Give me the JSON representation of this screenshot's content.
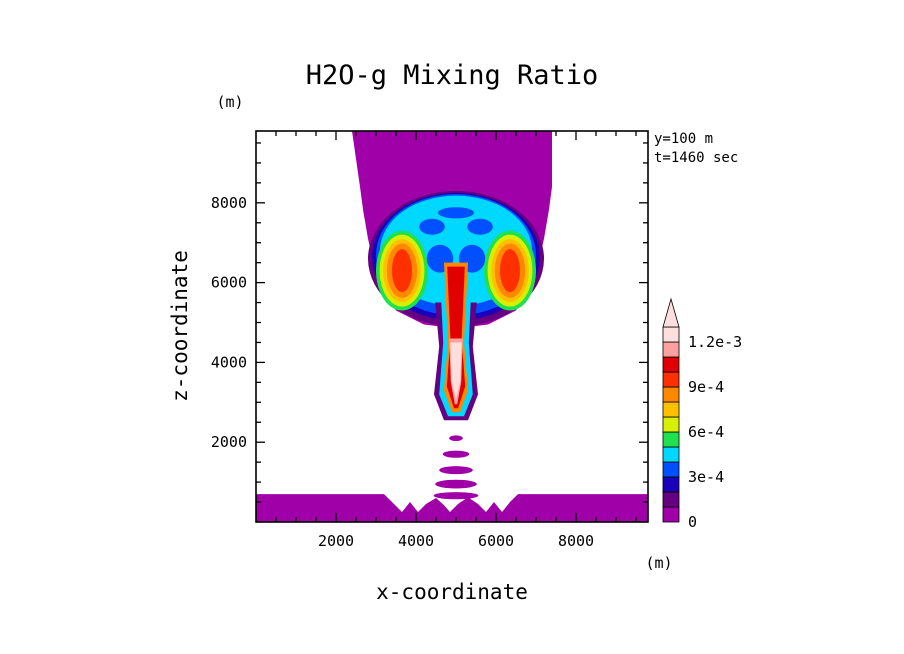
{
  "chart_data": {
    "type": "heatmap",
    "title": "H2O-g Mixing Ratio",
    "xlabel": "x-coordinate",
    "ylabel": "z-coordinate",
    "x_unit": "(m)",
    "y_unit": "(m)",
    "xlim": [
      0,
      9800
    ],
    "ylim": [
      0,
      9800
    ],
    "x_ticks": [
      "2000",
      "4000",
      "6000",
      "8000"
    ],
    "x_tick_values": [
      2000,
      4000,
      6000,
      8000
    ],
    "y_ticks": [
      "2000",
      "4000",
      "6000",
      "8000"
    ],
    "y_tick_values": [
      2000,
      4000,
      6000,
      8000
    ],
    "info_lines": [
      "y=100 m",
      "t=1460 sec"
    ],
    "colorbar": {
      "levels": [
        0,
        0.0001,
        0.0002,
        0.0003,
        0.0004,
        0.0005,
        0.0006,
        0.0007,
        0.0008,
        0.0009,
        0.001,
        0.0011,
        0.0012,
        0.0013
      ],
      "labels": [
        "0",
        "3e-4",
        "6e-4",
        "9e-4",
        "1.2e-3"
      ],
      "label_values": [
        0,
        0.0003,
        0.0006,
        0.0009,
        0.0012
      ],
      "colors": [
        "#a000a8",
        "#660080",
        "#1a00b8",
        "#0050ff",
        "#00d8ff",
        "#20e050",
        "#d8f000",
        "#ffc000",
        "#ff8800",
        "#ff3000",
        "#e00000",
        "#ffa0a0",
        "#ffdede"
      ],
      "extend": "max"
    },
    "features": [
      {
        "name": "upper moist layer",
        "value_class": 0,
        "region": "x 2400-7400 m, z 5500-9800 m"
      },
      {
        "name": "surface moist layer",
        "value_class": 0,
        "region": "x 0-9800 m, z 0-700 m"
      },
      {
        "name": "cloud head rim",
        "value_class": 2,
        "region": "x 2800-7200 m, z 5000-8300 m"
      },
      {
        "name": "cloud head",
        "value_class": 4,
        "region": "x 3000-7000 m, z 5200-8100 m"
      },
      {
        "name": "cloud head lobes",
        "value_class": 8,
        "region": "x 3000-4200 m and 5800-7000 m, z 5500-7000 m"
      },
      {
        "name": "central updraft column",
        "value_class": 12,
        "region": "x 4500-5500 m, z 2500-5500 m"
      },
      {
        "name": "sub-cloud bands",
        "value_class": 0,
        "region": "x 4200-5700 m, z 600-2100 m"
      }
    ]
  }
}
